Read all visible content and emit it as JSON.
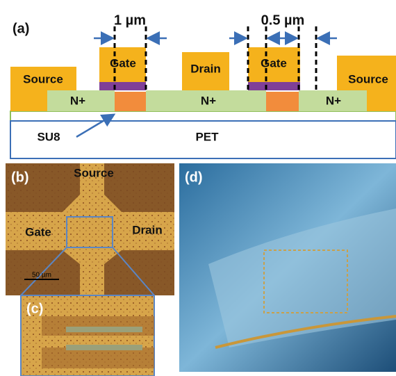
{
  "panel_a": {
    "label": "(a)",
    "dim_1": "1 µm",
    "dim_2": "0.5 µm",
    "source_left": "Source",
    "gate_1": "Gate",
    "drain": "Drain",
    "gate_2": "Gate",
    "source_right": "Source",
    "n_plus": [
      "N+",
      "N+",
      "N+"
    ],
    "su8": "SU8",
    "pet": "PET"
  },
  "panel_b": {
    "label": "(b)",
    "source": "Source",
    "gate": "Gate",
    "drain": "Drain",
    "scale_bar": "50 µm"
  },
  "panel_c": {
    "label": "(c)"
  },
  "panel_d": {
    "label": "(d)"
  }
}
